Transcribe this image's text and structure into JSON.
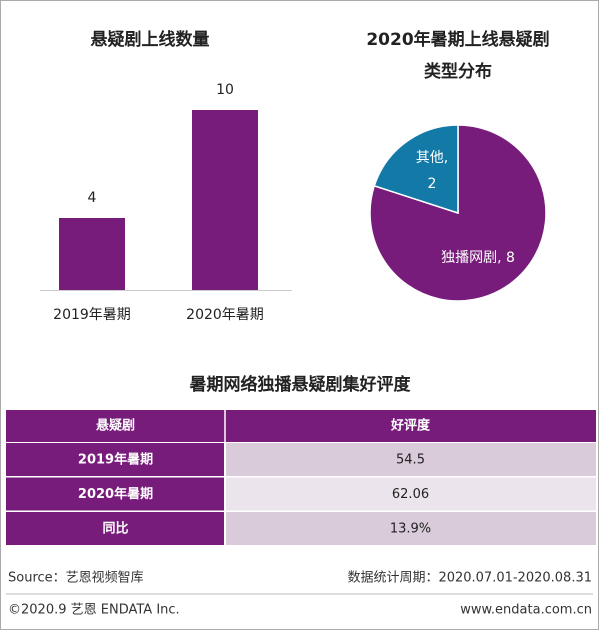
{
  "chart_data": [
    {
      "type": "bar",
      "title": "悬疑剧上线数量",
      "categories": [
        "2019年暑期",
        "2020年暑期"
      ],
      "values": [
        4,
        10
      ],
      "color": "#781c7c"
    },
    {
      "type": "pie",
      "title": [
        "2020年暑期上线悬疑剧",
        "类型分布"
      ],
      "values": [
        8,
        2
      ],
      "colors": [
        "#781c7c",
        "#137aa8"
      ],
      "labels": [
        [
          "独播网剧, 8"
        ],
        [
          "其他,",
          "2"
        ]
      ]
    }
  ],
  "table": {
    "title": "暑期网络独播悬疑剧集好评度",
    "header": [
      "悬疑剧",
      "好评度"
    ],
    "rows": [
      [
        "2019年暑期",
        "54.5"
      ],
      [
        "2020年暑期",
        "62.06"
      ],
      [
        "同比",
        "13.9%"
      ]
    ]
  },
  "footer": {
    "source": "Source：艺恩视频智库",
    "period": "数据统计周期：2020.07.01-2020.08.31",
    "copyright": "©2020.9 艺恩 ENDATA Inc.",
    "website": "www.endata.com.cn"
  }
}
